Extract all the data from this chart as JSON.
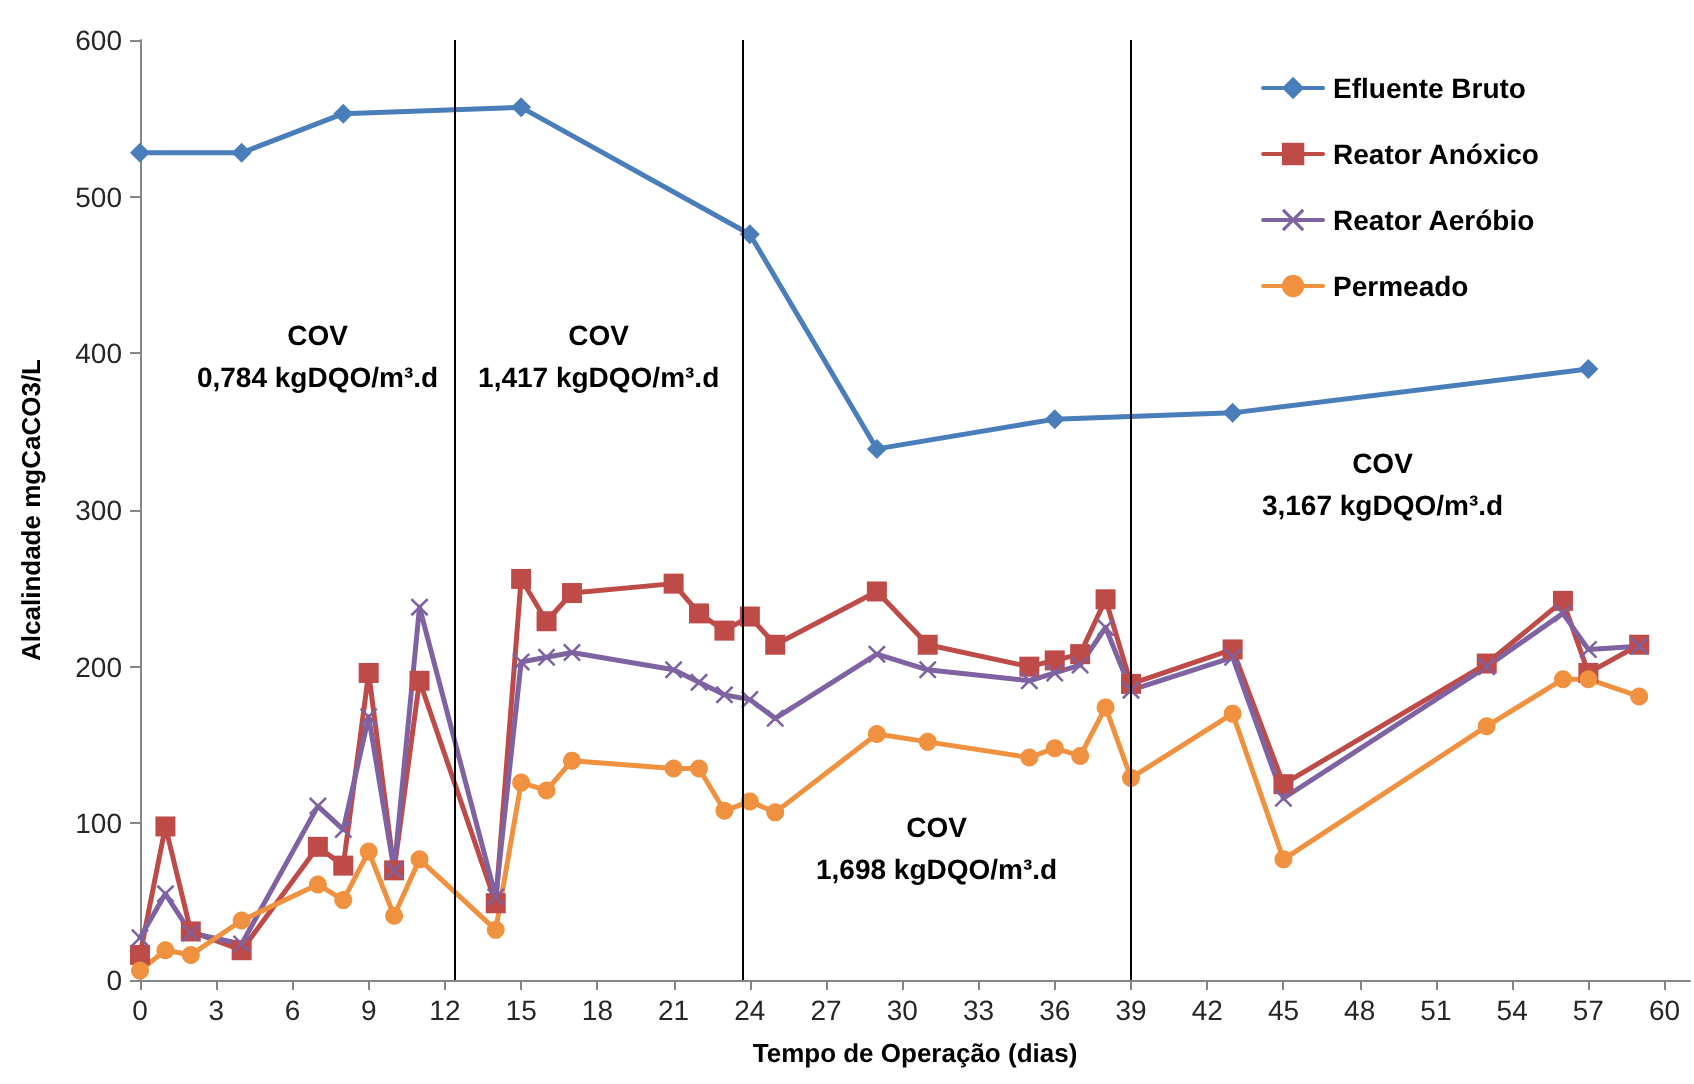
{
  "chart_data": {
    "type": "line",
    "xlabel": "Tempo de Operação (dias)",
    "ylabel": "Alcalindade mgCaCO3/L",
    "xlim": [
      0,
      61
    ],
    "xticks": [
      0,
      3,
      6,
      9,
      12,
      15,
      18,
      21,
      24,
      27,
      30,
      33,
      36,
      39,
      42,
      45,
      48,
      51,
      54,
      57,
      60
    ],
    "ylim": [
      0,
      600
    ],
    "yticks": [
      0,
      100,
      200,
      300,
      400,
      500,
      600
    ],
    "grid": false,
    "legend": "top right",
    "line_style": "solid",
    "series": [
      {
        "name": "Efluente Bruto",
        "color": "#4a7ebb",
        "marker": "diamond",
        "x": [
          0,
          4,
          8,
          15,
          24,
          29,
          36,
          43,
          57
        ],
        "values": [
          528,
          528,
          553,
          557,
          476,
          339,
          358,
          362,
          390
        ]
      },
      {
        "name": "Reator Anóxico",
        "color": "#be4b48",
        "marker": "square",
        "x": [
          0,
          1,
          2,
          4,
          7,
          8,
          9,
          10,
          11,
          14,
          15,
          16,
          17,
          21,
          22,
          23,
          24,
          25,
          29,
          31,
          35,
          36,
          37,
          38,
          39,
          43,
          45,
          53,
          56,
          57,
          59
        ],
        "values": [
          16,
          98,
          31,
          19,
          85,
          73,
          196,
          70,
          191,
          49,
          256,
          229,
          247,
          253,
          234,
          223,
          232,
          214,
          248,
          214,
          200,
          204,
          208,
          243,
          189,
          211,
          125,
          202,
          242,
          196,
          214
        ]
      },
      {
        "name": "Reator Aeróbio",
        "color": "#7e62a1",
        "marker": "cross",
        "x": [
          0,
          1,
          2,
          4,
          7,
          8,
          9,
          10,
          11,
          14,
          15,
          16,
          17,
          21,
          22,
          23,
          24,
          25,
          29,
          31,
          35,
          36,
          37,
          38,
          39,
          43,
          45,
          53,
          56,
          57,
          59
        ],
        "values": [
          27,
          55,
          30,
          23,
          111,
          96,
          168,
          70,
          238,
          53,
          203,
          206,
          209,
          198,
          190,
          182,
          179,
          167,
          208,
          198,
          191,
          196,
          201,
          225,
          185,
          206,
          116,
          200,
          234,
          211,
          213
        ]
      },
      {
        "name": "Permeado",
        "color": "#f0913f",
        "marker": "circle",
        "x": [
          0,
          1,
          2,
          4,
          7,
          8,
          9,
          10,
          11,
          14,
          15,
          16,
          17,
          21,
          22,
          23,
          24,
          25,
          29,
          31,
          35,
          36,
          37,
          38,
          39,
          43,
          45,
          53,
          56,
          57,
          59
        ],
        "values": [
          6,
          19,
          16,
          38,
          61,
          51,
          82,
          41,
          77,
          32,
          126,
          121,
          140,
          135,
          135,
          108,
          114,
          107,
          157,
          152,
          142,
          148,
          143,
          174,
          129,
          170,
          77,
          162,
          192,
          192,
          181
        ]
      }
    ],
    "ref_lines": [
      {
        "axis": "x",
        "value": 12.4,
        "color": "#000000"
      },
      {
        "axis": "x",
        "value": 23.7,
        "color": "#000000"
      },
      {
        "axis": "x",
        "value": 39,
        "color": "#000000"
      }
    ],
    "annotations": [
      "COV\n0,784 kgDQO/m³.d",
      "COV\n1,417 kgDQO/m³.d",
      "COV\n1,698 kgDQO/m³.d",
      "COV\n3,167 kgDQO/m³.d"
    ]
  }
}
